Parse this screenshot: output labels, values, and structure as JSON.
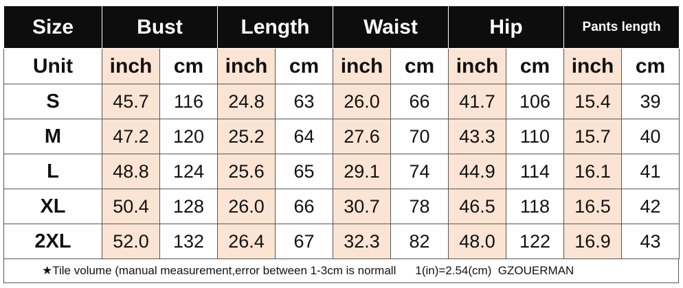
{
  "header": {
    "columns": [
      "Size",
      "Bust",
      "Length",
      "Waist",
      "Hip",
      "Pants length"
    ]
  },
  "units": {
    "label": "Unit",
    "values": [
      "inch",
      "cm",
      "inch",
      "cm",
      "inch",
      "cm",
      "inch",
      "cm",
      "inch",
      "cm"
    ]
  },
  "rows": [
    {
      "size": "S",
      "values": [
        "45.7",
        "116",
        "24.8",
        "63",
        "26.0",
        "66",
        "41.7",
        "106",
        "15.4",
        "39"
      ]
    },
    {
      "size": "M",
      "values": [
        "47.2",
        "120",
        "25.2",
        "64",
        "27.6",
        "70",
        "43.3",
        "110",
        "15.7",
        "40"
      ]
    },
    {
      "size": "L",
      "values": [
        "48.8",
        "124",
        "25.6",
        "65",
        "29.1",
        "74",
        "44.9",
        "114",
        "16.1",
        "41"
      ]
    },
    {
      "size": "XL",
      "values": [
        "50.4",
        "128",
        "26.0",
        "66",
        "30.7",
        "78",
        "46.5",
        "118",
        "16.5",
        "42"
      ]
    },
    {
      "size": "2XL",
      "values": [
        "52.0",
        "132",
        "26.4",
        "67",
        "32.3",
        "82",
        "48.0",
        "122",
        "16.9",
        "43"
      ]
    }
  ],
  "footer": {
    "note": "★Tile volume (manual measurement,error between 1-3cm is normall",
    "conversion": "1(in)=2.54(cm)  GZOUERMAN"
  }
}
